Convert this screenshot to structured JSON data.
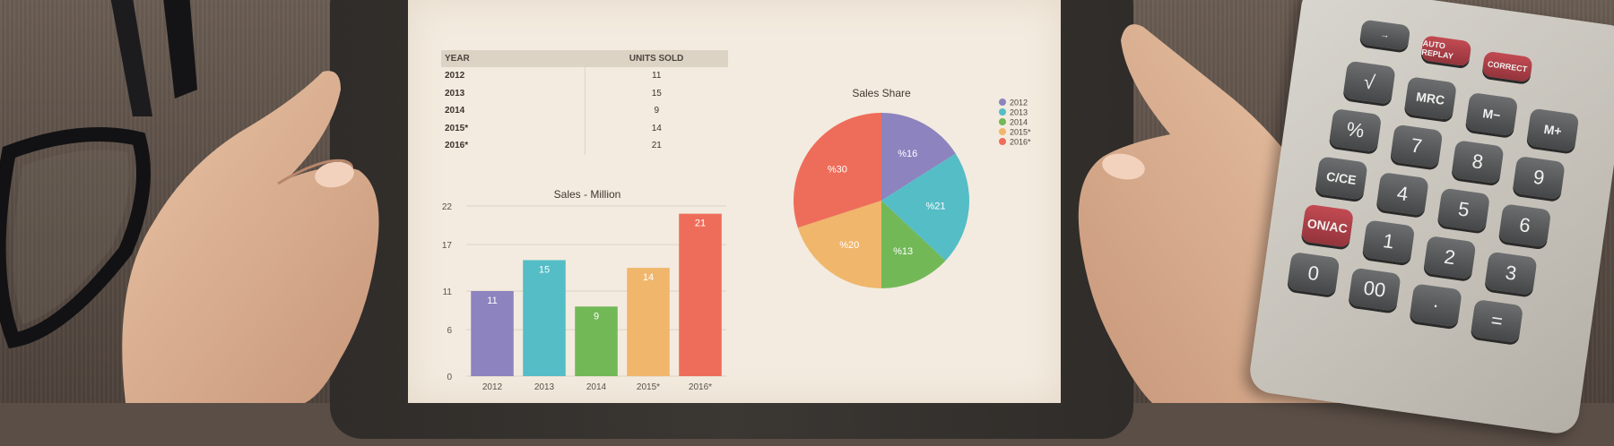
{
  "table": {
    "headers": [
      "YEAR",
      "UNITS SOLD"
    ],
    "rows": [
      {
        "year": "2012",
        "units": "11"
      },
      {
        "year": "2013",
        "units": "15"
      },
      {
        "year": "2014",
        "units": "9"
      },
      {
        "year": "2015*",
        "units": "14"
      },
      {
        "year": "2016*",
        "units": "21"
      }
    ]
  },
  "chart_data": [
    {
      "type": "bar",
      "title": "Sales - Million",
      "categories": [
        "2012",
        "2013",
        "2014",
        "2015*",
        "2016*"
      ],
      "values": [
        11,
        15,
        9,
        14,
        21
      ],
      "data_labels": [
        "11",
        "15",
        "9",
        "14",
        "21"
      ],
      "yticks": [
        "0",
        "6",
        "11",
        "17",
        "22"
      ],
      "ylim": [
        0,
        22
      ],
      "grid": true,
      "colors": [
        "#8d83bf",
        "#55bdc6",
        "#72b857",
        "#f0b66c",
        "#ee6d5a"
      ]
    },
    {
      "type": "pie",
      "title": "Sales Share",
      "labels": [
        "2012",
        "2013",
        "2014",
        "2015*",
        "2016*"
      ],
      "values": [
        16,
        21,
        13,
        20,
        30
      ],
      "data_labels": [
        "%16",
        "%21",
        "%13",
        "%20",
        "%30"
      ],
      "legend_position": "right",
      "colors": [
        "#8d83bf",
        "#55bdc6",
        "#72b857",
        "#f0b66c",
        "#ee6d5a"
      ]
    }
  ],
  "calculator": {
    "keys": [
      "→",
      "AUTO REPLAY",
      "CORRECT",
      "√",
      "MRC",
      "M−",
      "M+",
      "%",
      "7",
      "8",
      "9",
      "C/CE",
      "4",
      "5",
      "6",
      "ON/AC",
      "1",
      "2",
      "3",
      "0",
      "00",
      "·",
      "="
    ]
  },
  "colors": {
    "screen": "#f3ebdf",
    "desk": "#5a4e46",
    "tablet": "#33302c"
  }
}
